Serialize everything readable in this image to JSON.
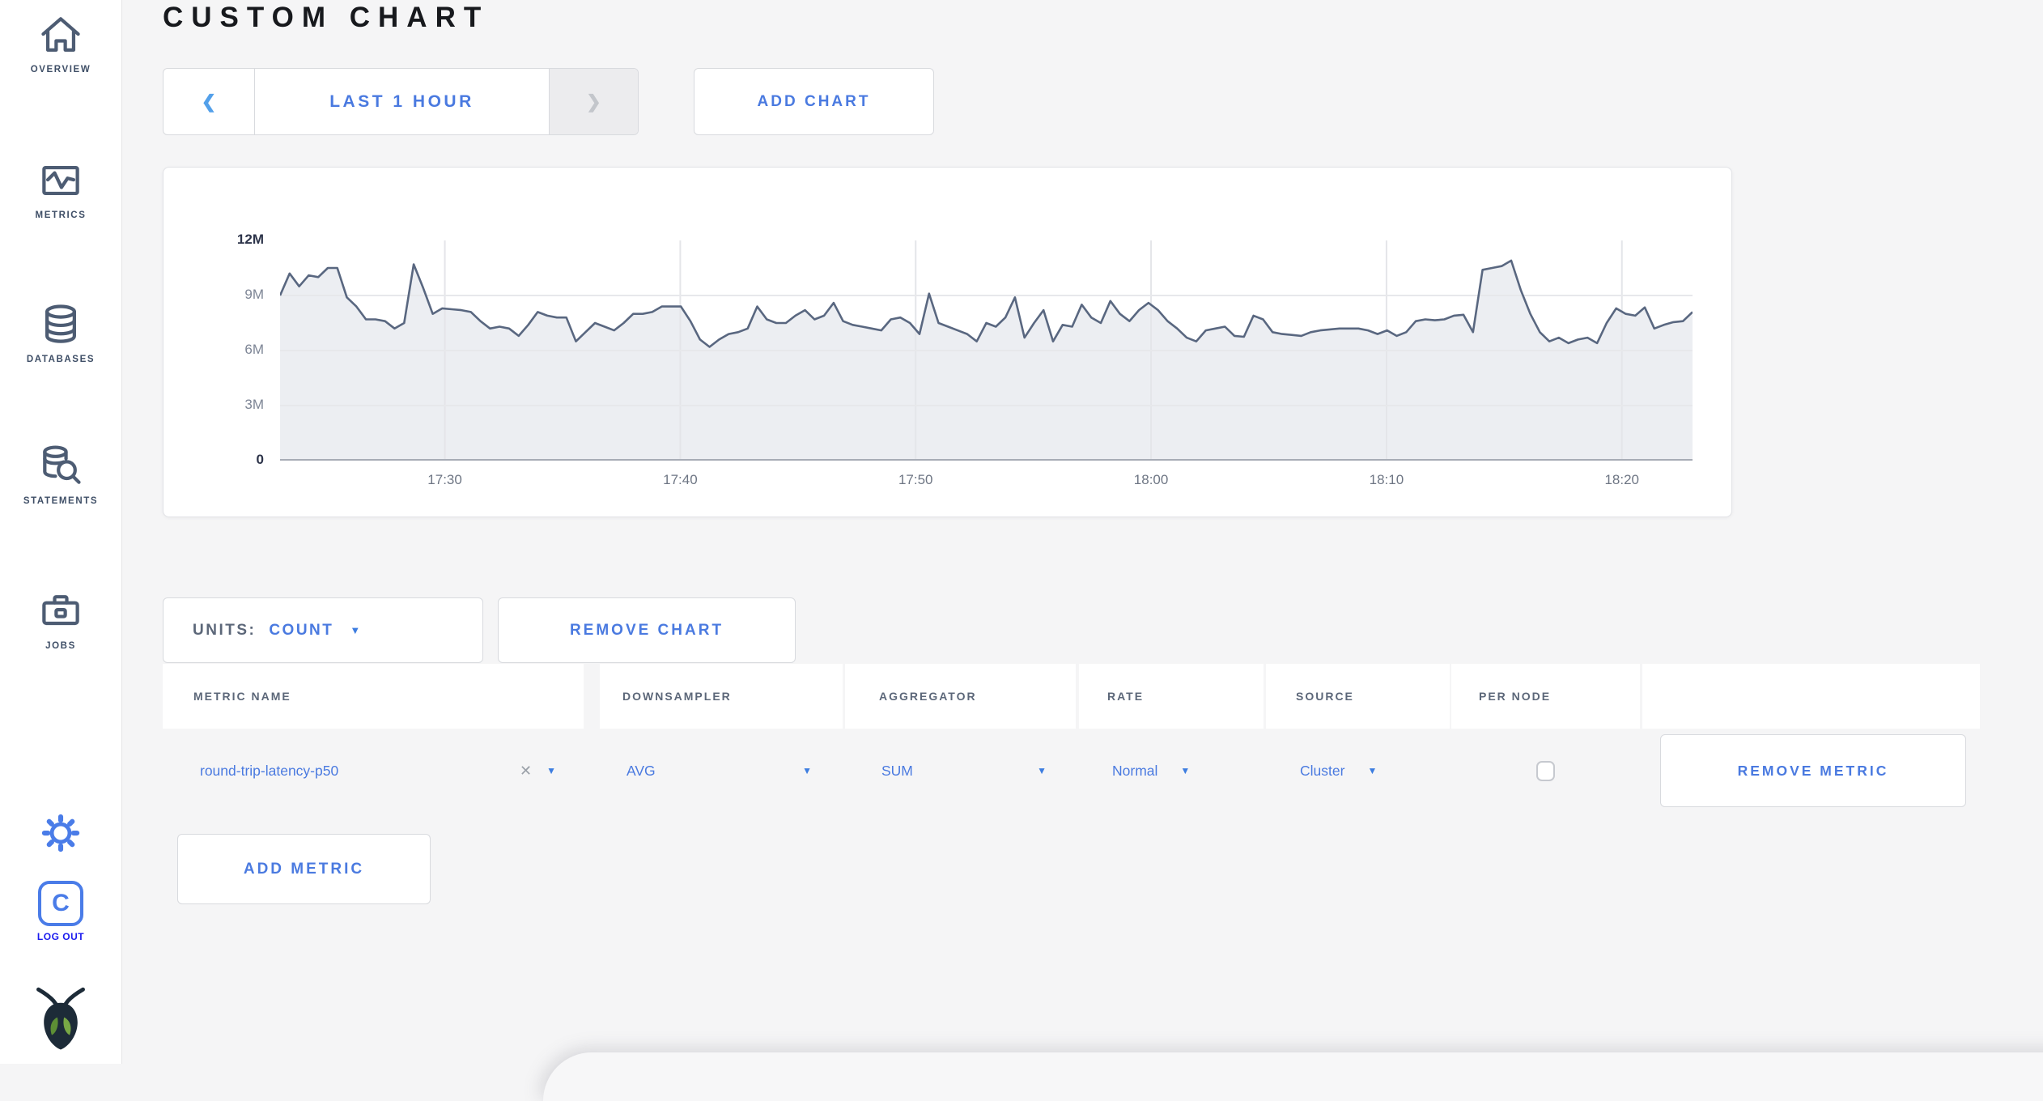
{
  "header": {
    "title": "CUSTOM CHART"
  },
  "icons": {
    "chevron_left": "❮",
    "chevron_right": "❯",
    "caret_down": "▼",
    "close": "✕"
  },
  "sidebar": {
    "items": [
      {
        "label": "OVERVIEW"
      },
      {
        "label": "METRICS"
      },
      {
        "label": "DATABASES"
      },
      {
        "label": "STATEMENTS"
      },
      {
        "label": "JOBS"
      }
    ],
    "logo_letter": "C",
    "logout_label": "LOG OUT"
  },
  "controls": {
    "time_range": "LAST 1 HOUR",
    "add_chart": "ADD CHART"
  },
  "chart_controls": {
    "units_label": "UNITS:",
    "units_value": "COUNT",
    "remove_chart": "REMOVE CHART"
  },
  "chart_data": {
    "type": "area",
    "title": "",
    "unit": "count",
    "x_start": "17:23",
    "x_end": "18:23",
    "span_minutes": 60,
    "x_ticks": [
      "17:30",
      "17:40",
      "17:50",
      "18:00",
      "18:10",
      "18:20"
    ],
    "x_tick_minutes": [
      7,
      17,
      27,
      37,
      47,
      57
    ],
    "ylim": [
      0,
      12000000
    ],
    "y_ticks": [
      {
        "label": "0",
        "value": 0,
        "emph": true
      },
      {
        "label": "3M",
        "value": 3,
        "emph": false
      },
      {
        "label": "6M",
        "value": 6,
        "emph": false
      },
      {
        "label": "9M",
        "value": 9,
        "emph": false
      },
      {
        "label": "12M",
        "value": 12,
        "emph": true
      }
    ],
    "grid": true,
    "line_color": "#596780",
    "fill_color": "#eceef2",
    "values_millions": [
      9.0,
      10.2,
      9.5,
      10.1,
      10.0,
      10.5,
      10.5,
      8.9,
      8.4,
      7.7,
      7.7,
      7.6,
      7.2,
      7.5,
      10.7,
      9.4,
      8.0,
      8.3,
      8.25,
      8.2,
      8.1,
      7.6,
      7.2,
      7.3,
      7.2,
      6.8,
      7.4,
      8.1,
      7.9,
      7.8,
      7.8,
      6.5,
      7.0,
      7.5,
      7.3,
      7.1,
      7.5,
      8.0,
      8.0,
      8.1,
      8.4,
      8.4,
      8.4,
      7.6,
      6.6,
      6.2,
      6.6,
      6.9,
      7.0,
      7.2,
      8.4,
      7.7,
      7.5,
      7.5,
      7.9,
      8.2,
      7.7,
      7.9,
      8.6,
      7.6,
      7.4,
      7.3,
      7.2,
      7.1,
      7.7,
      7.8,
      7.5,
      6.9,
      9.1,
      7.5,
      7.3,
      7.1,
      6.9,
      6.5,
      7.5,
      7.3,
      7.8,
      8.9,
      6.7,
      7.5,
      8.2,
      6.5,
      7.4,
      7.3,
      8.5,
      7.8,
      7.5,
      8.7,
      8.0,
      7.6,
      8.2,
      8.6,
      8.2,
      7.6,
      7.2,
      6.7,
      6.5,
      7.1,
      7.2,
      7.3,
      6.8,
      6.75,
      7.9,
      7.7,
      7.0,
      6.9,
      6.85,
      6.8,
      7.0,
      7.1,
      7.15,
      7.2,
      7.2,
      7.2,
      7.1,
      6.9,
      7.1,
      6.8,
      7.0,
      7.6,
      7.7,
      7.65,
      7.7,
      7.9,
      7.95,
      7.0,
      10.4,
      10.5,
      10.6,
      10.9,
      9.3,
      8.0,
      7.0,
      6.5,
      6.7,
      6.4,
      6.6,
      6.7,
      6.4,
      7.5,
      8.3,
      8.0,
      7.9,
      8.35,
      7.2,
      7.4,
      7.55,
      7.6,
      8.1
    ]
  },
  "metrics_table": {
    "columns": [
      "METRIC NAME",
      "DOWNSAMPLER",
      "AGGREGATOR",
      "RATE",
      "SOURCE",
      "PER NODE"
    ],
    "rows": [
      {
        "metric_name": "round-trip-latency-p50",
        "downsampler": "AVG",
        "aggregator": "SUM",
        "rate": "Normal",
        "source": "Cluster",
        "per_node_checked": false,
        "remove_label": "REMOVE METRIC"
      }
    ],
    "add_metric": "ADD METRIC"
  },
  "colors": {
    "accent_blue": "#4a7ae0",
    "logout_blue": "#1a1aef",
    "icon_slate": "#4d5c73",
    "line": "#596780",
    "area_fill": "#eceef2"
  }
}
